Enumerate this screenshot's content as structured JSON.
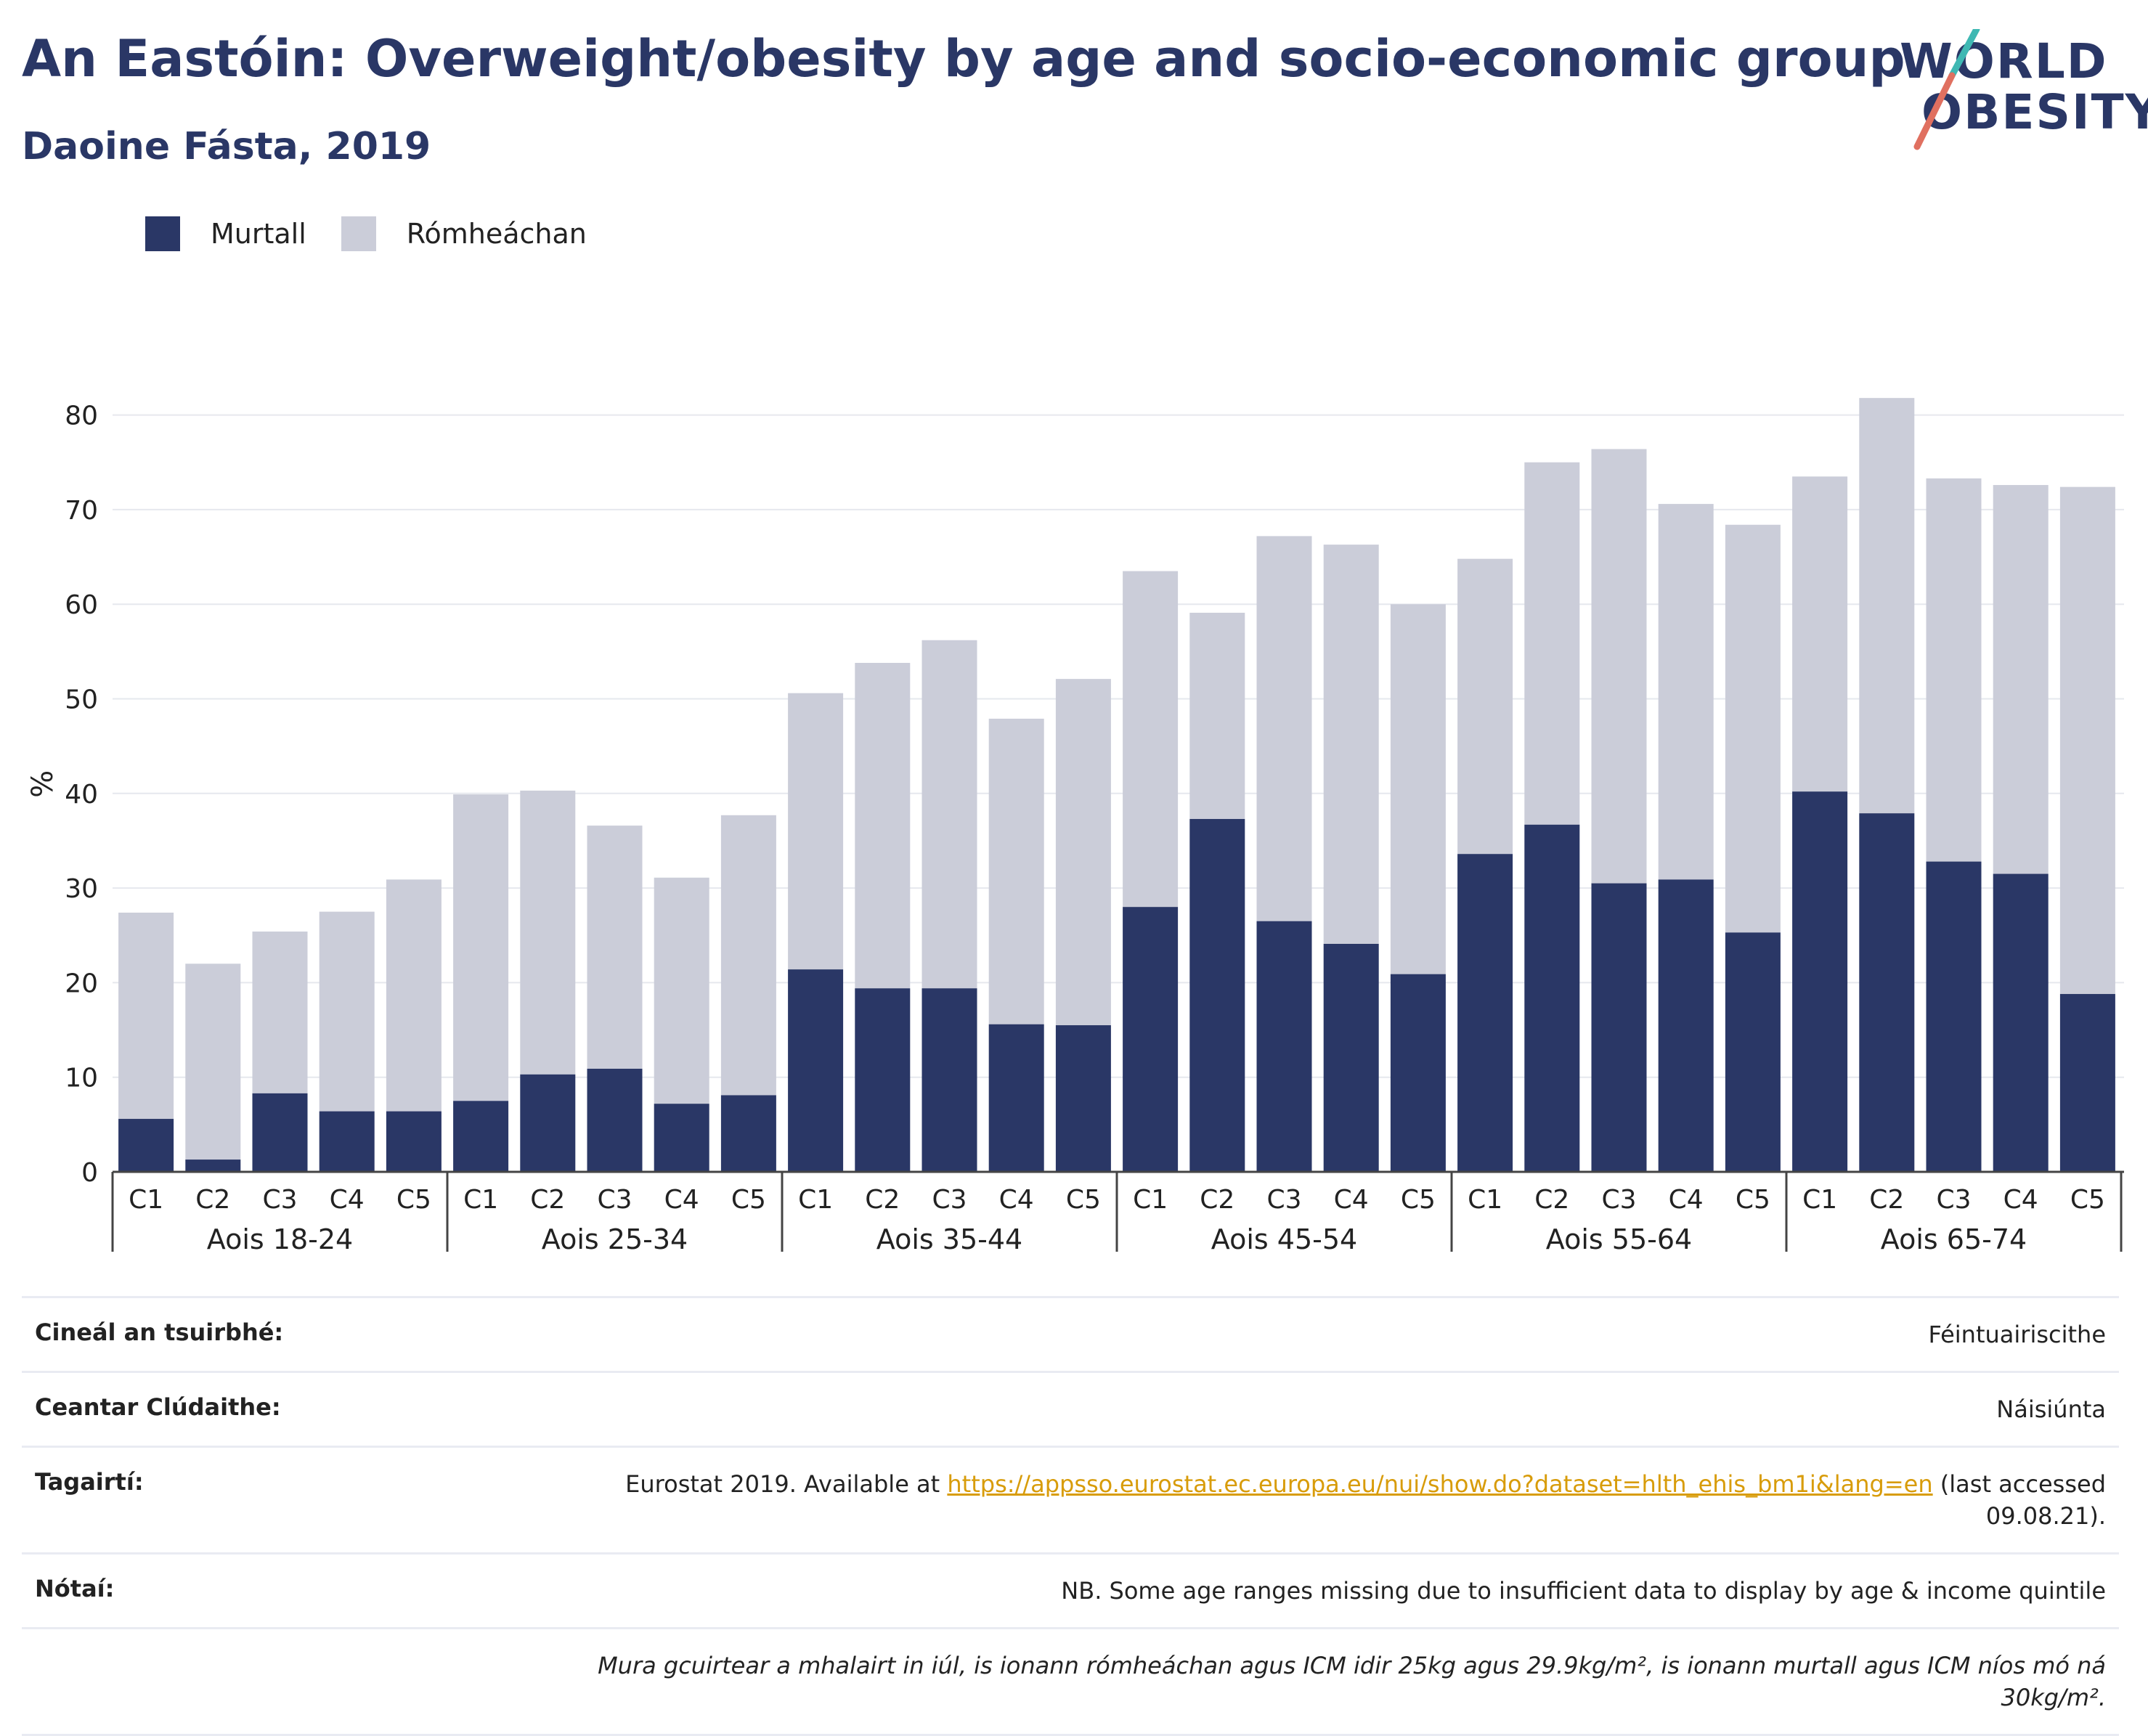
{
  "title": "An Eastóin: Overweight/obesity by age and socio-economic group",
  "subtitle": "Daoine Fásta, 2019",
  "logo": {
    "line1": "WORLD",
    "line2": "OBESITY"
  },
  "colors": {
    "obese": "#2a3766",
    "overweight": "#cbcdd9",
    "accent_teal": "#3fb8b3",
    "accent_coral": "#e07060",
    "link": "#d89c0a"
  },
  "legend": [
    {
      "label": "Murtall",
      "color": "#2a3766"
    },
    {
      "label": "Rómheáchan",
      "color": "#cbcdd9"
    }
  ],
  "chart_data": {
    "type": "bar",
    "stacked": true,
    "ylabel": "%",
    "ylim": [
      0,
      82
    ],
    "yticks": [
      0,
      10,
      20,
      30,
      40,
      50,
      60,
      70,
      80
    ],
    "grid": true,
    "groups": [
      {
        "label": "Aois 18-24",
        "categories": [
          "C1",
          "C2",
          "C3",
          "C4",
          "C5"
        ],
        "obese": [
          5.6,
          1.3,
          8.3,
          6.4,
          6.4
        ],
        "total": [
          27.4,
          22.0,
          25.4,
          27.5,
          30.9
        ]
      },
      {
        "label": "Aois 25-34",
        "categories": [
          "C1",
          "C2",
          "C3",
          "C4",
          "C5"
        ],
        "obese": [
          7.5,
          10.3,
          10.9,
          7.2,
          8.1
        ],
        "total": [
          39.9,
          40.3,
          36.6,
          31.1,
          37.7
        ]
      },
      {
        "label": "Aois 35-44",
        "categories": [
          "C1",
          "C2",
          "C3",
          "C4",
          "C5"
        ],
        "obese": [
          21.4,
          19.4,
          19.4,
          15.6,
          15.5
        ],
        "total": [
          50.6,
          53.8,
          56.2,
          47.9,
          52.1
        ]
      },
      {
        "label": "Aois 45-54",
        "categories": [
          "C1",
          "C2",
          "C3",
          "C4",
          "C5"
        ],
        "obese": [
          28.0,
          37.3,
          26.5,
          24.1,
          20.9
        ],
        "total": [
          63.5,
          59.1,
          67.2,
          66.3,
          60.0
        ]
      },
      {
        "label": "Aois 55-64",
        "categories": [
          "C1",
          "C2",
          "C3",
          "C4",
          "C5"
        ],
        "obese": [
          33.6,
          36.7,
          30.5,
          30.9,
          25.3
        ],
        "total": [
          64.8,
          75.0,
          76.4,
          70.6,
          68.4
        ]
      },
      {
        "label": "Aois 65-74",
        "categories": [
          "C1",
          "C2",
          "C3",
          "C4",
          "C5"
        ],
        "obese": [
          40.2,
          37.9,
          32.8,
          31.5,
          18.8
        ],
        "total": [
          73.5,
          81.8,
          73.3,
          72.6,
          72.4
        ]
      }
    ],
    "series": [
      {
        "name": "Murtall",
        "key": "obese"
      },
      {
        "name": "Rómheáchan",
        "key": "overweight"
      }
    ]
  },
  "info": {
    "survey_label": "Cineál an tsuirbhé:",
    "survey_value": "Féintuairiscithe",
    "area_label": "Ceantar Clúdaithe:",
    "area_value": "Náisiúnta",
    "refs_label": "Tagairtí:",
    "refs_prefix": "Eurostat 2019. Available at ",
    "refs_link": "https://appsso.eurostat.ec.europa.eu/nui/show.do?dataset=hlth_ehis_bm1i&lang=en",
    "refs_suffix": " (last accessed 09.08.21).",
    "notes_label": "Nótaí:",
    "notes_value": "NB. Some age ranges missing due to insufficient data to display by age & income quintile",
    "definition": "Mura gcuirtear a mhalairt in iúl, is ionann rómheáchan agus ICM idir 25kg agus 29.9kg/m², is ionann murtall agus ICM níos mó ná 30kg/m²."
  }
}
